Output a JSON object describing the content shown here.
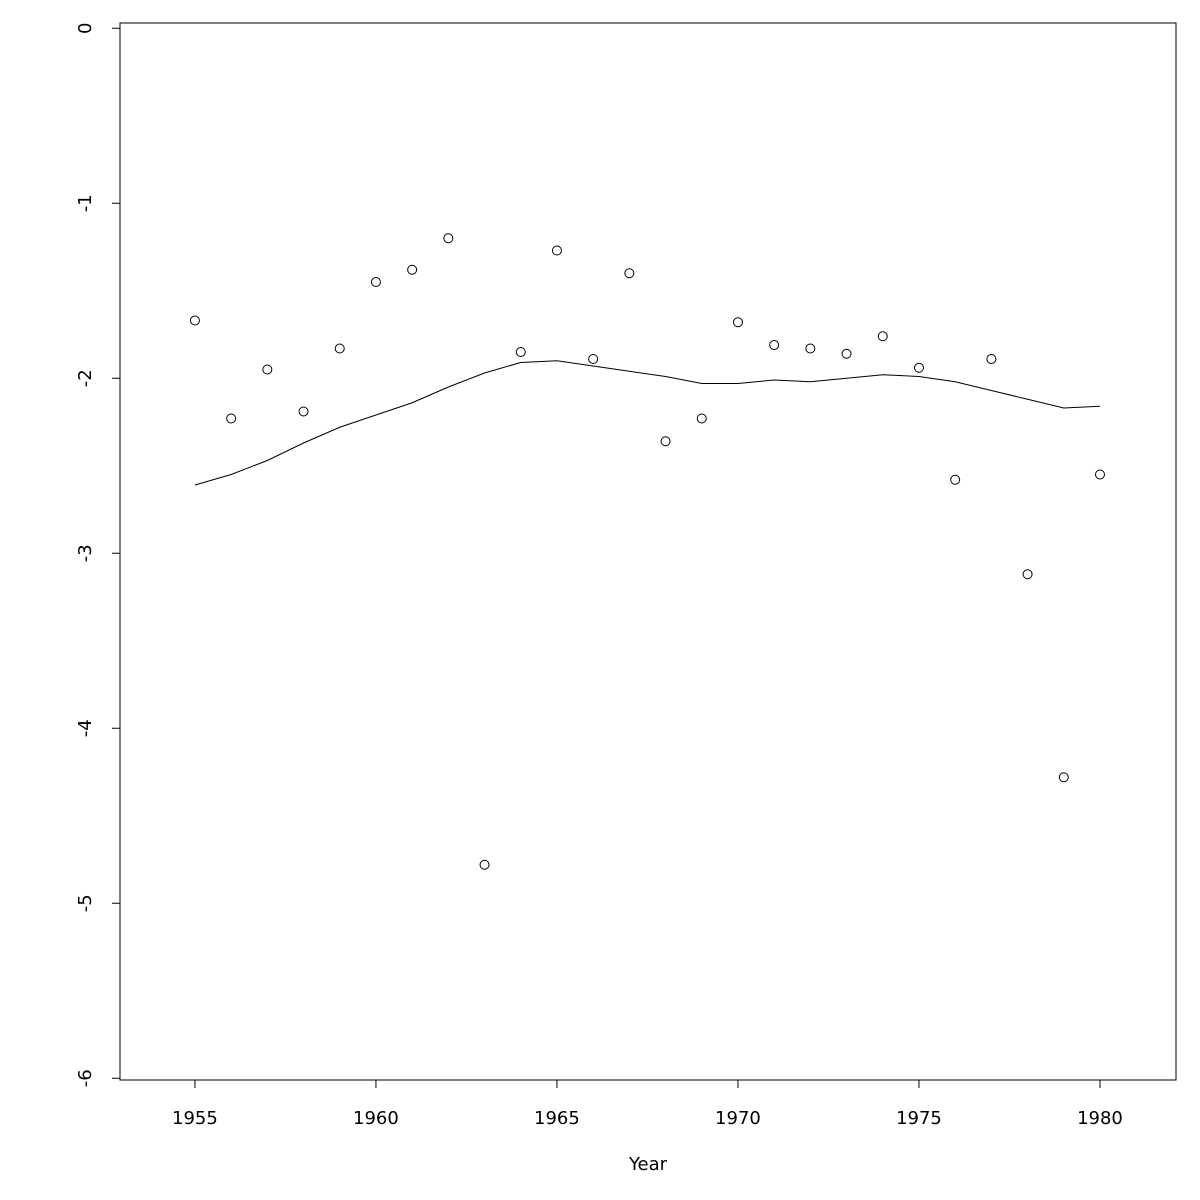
{
  "chart_data": {
    "type": "scatter",
    "xlabel": "Year",
    "x": [
      1955,
      1956,
      1957,
      1958,
      1959,
      1960,
      1961,
      1962,
      1963,
      1964,
      1965,
      1966,
      1967,
      1968,
      1969,
      1970,
      1971,
      1972,
      1973,
      1974,
      1975,
      1976,
      1977,
      1978,
      1979,
      1980
    ],
    "series": [
      {
        "style": "points",
        "color": "#000000",
        "values": [
          -1.67,
          -2.23,
          -1.95,
          -2.19,
          -1.83,
          -1.45,
          -1.38,
          -1.2,
          -4.78,
          -1.85,
          -1.27,
          -1.89,
          -1.4,
          -2.36,
          -2.23,
          -1.68,
          -1.81,
          -1.83,
          -1.86,
          -1.76,
          -1.94,
          -2.58,
          -1.89,
          -3.12,
          -4.28,
          -2.55
        ]
      },
      {
        "style": "line",
        "color": "#000000",
        "values": [
          -2.61,
          -2.55,
          -2.47,
          -2.37,
          -2.28,
          -2.21,
          -2.14,
          -2.05,
          -1.97,
          -1.91,
          -1.9,
          -1.93,
          -1.96,
          -1.99,
          -2.03,
          -2.03,
          -2.01,
          -2.02,
          -2.0,
          -1.98,
          -1.99,
          -2.02,
          -2.07,
          -2.12,
          -2.17,
          -2.16
        ]
      }
    ],
    "xlim": [
      1952.93,
      1982.1
    ],
    "ylim": [
      -6.01,
      0.03
    ],
    "xticks": [
      1955,
      1960,
      1965,
      1970,
      1975,
      1980
    ],
    "yticks": [
      0,
      -1,
      -2,
      -3,
      -4,
      -5,
      -6
    ]
  }
}
